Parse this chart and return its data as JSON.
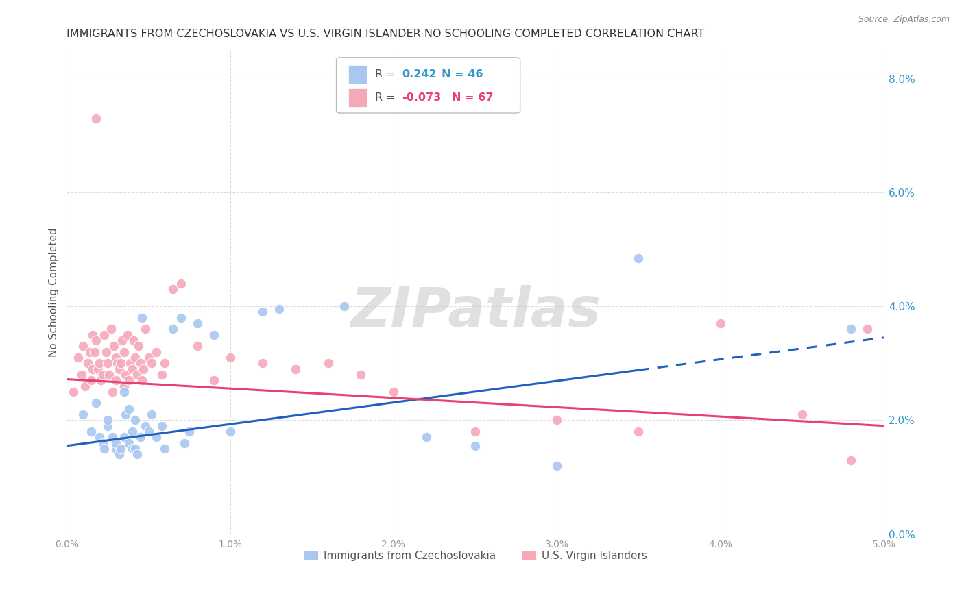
{
  "title": "IMMIGRANTS FROM CZECHOSLOVAKIA VS U.S. VIRGIN ISLANDER NO SCHOOLING COMPLETED CORRELATION CHART",
  "source": "Source: ZipAtlas.com",
  "xlabel_label": "Immigrants from Czechoslovakia",
  "ylabel_label": "No Schooling Completed",
  "xlim": [
    0.0,
    5.0
  ],
  "ylim": [
    0.0,
    8.5
  ],
  "yticks": [
    0.0,
    2.0,
    4.0,
    6.0,
    8.0
  ],
  "xticks": [
    0.0,
    1.0,
    2.0,
    3.0,
    4.0,
    5.0
  ],
  "blue_color": "#A8C8F0",
  "pink_color": "#F5A8B8",
  "blue_line_color": "#2060C0",
  "pink_line_color": "#E84070",
  "watermark": "ZIPatlas",
  "watermark_color": "#C8C8C8",
  "blue_scatter_x": [
    0.1,
    0.15,
    0.18,
    0.2,
    0.22,
    0.23,
    0.25,
    0.25,
    0.28,
    0.3,
    0.3,
    0.32,
    0.33,
    0.35,
    0.35,
    0.36,
    0.38,
    0.38,
    0.4,
    0.4,
    0.42,
    0.42,
    0.43,
    0.45,
    0.46,
    0.48,
    0.5,
    0.52,
    0.55,
    0.58,
    0.6,
    0.65,
    0.7,
    0.72,
    0.75,
    0.8,
    0.9,
    1.0,
    1.2,
    1.3,
    1.7,
    2.2,
    2.5,
    3.0,
    3.5,
    4.8
  ],
  "blue_scatter_y": [
    2.1,
    1.8,
    2.3,
    1.7,
    1.6,
    1.5,
    1.9,
    2.0,
    1.7,
    1.5,
    1.6,
    1.4,
    1.5,
    1.7,
    2.5,
    2.1,
    1.6,
    2.2,
    1.5,
    1.8,
    1.5,
    2.0,
    1.4,
    1.7,
    3.8,
    1.9,
    1.8,
    2.1,
    1.7,
    1.9,
    1.5,
    3.6,
    3.8,
    1.6,
    1.8,
    3.7,
    3.5,
    1.8,
    3.9,
    3.95,
    4.0,
    1.7,
    1.55,
    1.2,
    4.85,
    3.6
  ],
  "pink_scatter_x": [
    0.04,
    0.07,
    0.09,
    0.1,
    0.11,
    0.13,
    0.14,
    0.15,
    0.16,
    0.16,
    0.17,
    0.18,
    0.19,
    0.2,
    0.21,
    0.22,
    0.23,
    0.24,
    0.25,
    0.26,
    0.27,
    0.28,
    0.29,
    0.3,
    0.3,
    0.31,
    0.32,
    0.33,
    0.34,
    0.35,
    0.35,
    0.36,
    0.37,
    0.38,
    0.39,
    0.4,
    0.41,
    0.42,
    0.43,
    0.44,
    0.45,
    0.46,
    0.47,
    0.48,
    0.5,
    0.52,
    0.55,
    0.58,
    0.6,
    0.65,
    0.7,
    0.8,
    0.9,
    1.0,
    1.2,
    1.4,
    1.6,
    1.8,
    2.0,
    2.5,
    3.0,
    3.5,
    4.0,
    4.5,
    4.8,
    4.9
  ],
  "pink_scatter_y": [
    2.5,
    3.1,
    2.8,
    3.3,
    2.6,
    3.0,
    3.2,
    2.7,
    3.5,
    2.9,
    3.2,
    3.4,
    2.9,
    3.0,
    2.7,
    2.8,
    3.5,
    3.2,
    3.0,
    2.8,
    3.6,
    2.5,
    3.3,
    2.7,
    3.1,
    3.0,
    2.9,
    3.0,
    3.4,
    2.6,
    3.2,
    2.8,
    3.5,
    2.7,
    3.0,
    2.9,
    3.4,
    3.1,
    2.8,
    3.3,
    3.0,
    2.7,
    2.9,
    3.6,
    3.1,
    3.0,
    3.2,
    2.8,
    3.0,
    4.3,
    4.4,
    3.3,
    2.7,
    3.1,
    3.0,
    2.9,
    3.0,
    2.8,
    2.5,
    1.8,
    2.0,
    1.8,
    3.7,
    2.1,
    1.3,
    3.6
  ],
  "pink_outlier_x": [
    0.18
  ],
  "pink_outlier_y": [
    7.3
  ],
  "blue_line_x0": 0.0,
  "blue_line_x1": 5.0,
  "blue_line_y0": 1.55,
  "blue_line_y1": 3.45,
  "blue_solid_x1": 3.5,
  "blue_dash_x0": 3.5,
  "blue_dash_x1": 5.0,
  "pink_line_x0": 0.0,
  "pink_line_x1": 5.0,
  "pink_line_y0": 2.72,
  "pink_line_y1": 1.9,
  "background_color": "#FFFFFF",
  "grid_color": "#DDDDDD",
  "title_color": "#333333",
  "axis_label_color": "#3399CC",
  "tick_color": "#3399CC",
  "title_fontsize": 11.5,
  "ylabel_fontsize": 11,
  "tick_fontsize": 11,
  "source_color": "#888888"
}
